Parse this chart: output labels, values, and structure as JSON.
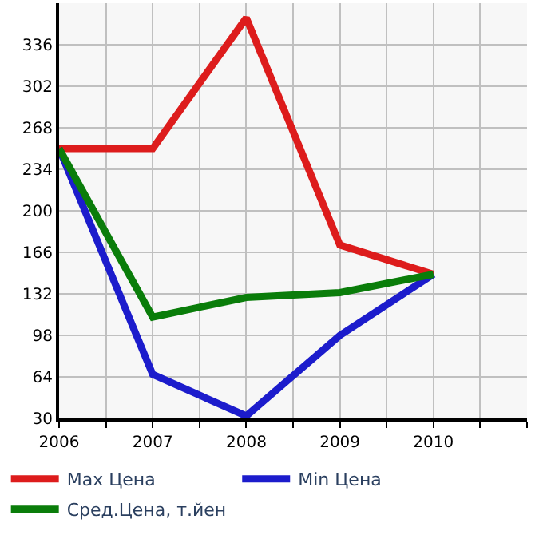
{
  "chart_data": {
    "type": "line",
    "x": [
      2006,
      2007,
      2008,
      2009,
      2010
    ],
    "series": [
      {
        "name": "Max Цена",
        "color": "#dd1c1c",
        "values": [
          251,
          251,
          358,
          172,
          148
        ]
      },
      {
        "name": "Min Цена",
        "color": "#1c1ccc",
        "values": [
          251,
          66,
          32,
          98,
          148
        ]
      },
      {
        "name": "Сред.Цена, т.йен",
        "color": "#0a7d0a",
        "values": [
          251,
          113,
          129,
          133,
          148
        ]
      }
    ],
    "xlim": [
      2006,
      2011
    ],
    "xticks": [
      2006,
      {
        "value": 2006.5,
        "label": null
      },
      2007,
      {
        "value": 2007.5,
        "label": null
      },
      2008,
      {
        "value": 2008.5,
        "label": null
      },
      2009,
      {
        "value": 2009.5,
        "label": null
      },
      2010,
      {
        "value": 2010.5,
        "label": null
      },
      {
        "value": 2011,
        "label": null
      }
    ],
    "ylim": [
      30,
      370
    ],
    "yticks": [
      30,
      64,
      98,
      132,
      166,
      200,
      234,
      268,
      302,
      336
    ],
    "grid": true,
    "legend": "bottom",
    "marker": "none",
    "line_style": "solid"
  }
}
